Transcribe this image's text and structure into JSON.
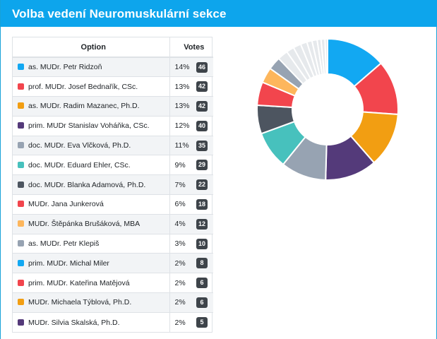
{
  "header": {
    "title": "Volba vedení Neuromuskulární sekce"
  },
  "table": {
    "col_option": "Option",
    "col_votes": "Votes",
    "rows": [
      {
        "name": "as. MUDr. Petr Ridzoň",
        "pct": "14%",
        "votes": "46",
        "color": "#12a8f2"
      },
      {
        "name": "prof. MUDr. Josef Bednařík, CSc.",
        "pct": "13%",
        "votes": "42",
        "color": "#f2454d"
      },
      {
        "name": "as. MUDr. Radim Mazanec, Ph.D.",
        "pct": "13%",
        "votes": "42",
        "color": "#f29e12"
      },
      {
        "name": "prim. MUDr Stanislav Voháňka, CSc.",
        "pct": "12%",
        "votes": "40",
        "color": "#543a7a"
      },
      {
        "name": "doc. MUDr. Eva Vlčková, Ph.D.",
        "pct": "11%",
        "votes": "35",
        "color": "#97a3b2"
      },
      {
        "name": "doc. MUDr. Eduard Ehler, CSc.",
        "pct": "9%",
        "votes": "29",
        "color": "#47c1bd"
      },
      {
        "name": "doc. MUDr. Blanka Adamová, Ph.D.",
        "pct": "7%",
        "votes": "22",
        "color": "#4d5560"
      },
      {
        "name": "MUDr. Jana Junkerová",
        "pct": "6%",
        "votes": "18",
        "color": "#f2454d"
      },
      {
        "name": "MUDr. Štěpánka Brušáková, MBA",
        "pct": "4%",
        "votes": "12",
        "color": "#fdb65c"
      },
      {
        "name": "as. MUDr. Petr Klepiš",
        "pct": "3%",
        "votes": "10",
        "color": "#97a3b2"
      },
      {
        "name": "prim. MUDr. Michal Miler",
        "pct": "2%",
        "votes": "8",
        "color": "#12a8f2"
      },
      {
        "name": "prim. MUDr. Kateřina Matějová",
        "pct": "2%",
        "votes": "6",
        "color": "#f2454d"
      },
      {
        "name": "MUDr. Michaela Týblová, Ph.D.",
        "pct": "2%",
        "votes": "6",
        "color": "#f29e12"
      },
      {
        "name": "MUDr. Silvia Skalská, Ph.D.",
        "pct": "2%",
        "votes": "5",
        "color": "#543a7a"
      }
    ]
  },
  "chart_data": {
    "type": "pie",
    "donut": true,
    "values": [
      46,
      42,
      42,
      40,
      35,
      29,
      22,
      18,
      12,
      10,
      8,
      6,
      6,
      5,
      4,
      4,
      3,
      3,
      2
    ],
    "colors": [
      "#12a8f2",
      "#f2454d",
      "#f29e12",
      "#543a7a",
      "#97a3b2",
      "#47c1bd",
      "#4d5560",
      "#f2454d",
      "#fdb65c",
      "#97a3b2",
      "#e6e9ec",
      "#e6e9ec",
      "#e6e9ec",
      "#e6e9ec",
      "#e6e9ec",
      "#e6e9ec",
      "#e6e9ec",
      "#e6e9ec",
      "#e6e9ec"
    ]
  }
}
